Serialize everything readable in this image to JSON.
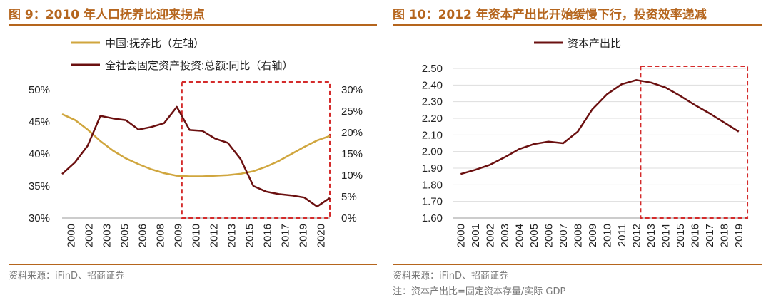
{
  "figures": [
    {
      "title": "图 9：2010 年人口抚养比迎来拐点",
      "source": "资料来源：iFinD、招商证券"
    },
    {
      "title": "图 10：2012 年资本产出比开始缓慢下行，投资效率递减",
      "source": "资料来源：iFinD、招商证券",
      "note": "注：资本产出比=固定资本存量/实际 GDP"
    }
  ],
  "chart_data": [
    {
      "type": "line",
      "title": "2010 年人口抚养比迎来拐点",
      "x_ticks": [
        "2000",
        "2002",
        "2003",
        "2005",
        "2006",
        "2008",
        "2009",
        "2010",
        "2012",
        "2013",
        "2015",
        "2016",
        "2017",
        "2019",
        "2020"
      ],
      "left_axis": {
        "range": [
          30,
          50
        ],
        "ticks": [
          "30%",
          "35%",
          "40%",
          "45%",
          "50%"
        ]
      },
      "right_axis": {
        "range": [
          0,
          30
        ],
        "ticks": [
          "0%",
          "5%",
          "10%",
          "15%",
          "20%",
          "25%",
          "30%"
        ]
      },
      "highlight_range": [
        2009.4,
        2021.0
      ],
      "series": [
        {
          "name": "中国:抚养比（左轴）",
          "axis": "left",
          "color": "#d0a63e",
          "x": [
            2000,
            2001,
            2002,
            2003,
            2004,
            2005,
            2006,
            2007,
            2008,
            2009,
            2010,
            2011,
            2012,
            2013,
            2014,
            2015,
            2016,
            2017,
            2018,
            2019,
            2020,
            2021
          ],
          "values": [
            46.2,
            45.3,
            43.8,
            42.0,
            40.5,
            39.3,
            38.4,
            37.6,
            37.0,
            36.6,
            36.5,
            36.5,
            36.6,
            36.7,
            36.9,
            37.3,
            38.0,
            38.9,
            40.0,
            41.1,
            42.1,
            42.8
          ]
        },
        {
          "name": "全社会固定资产投资:总额:同比（右轴）",
          "axis": "right",
          "color": "#6b1010",
          "x": [
            2000,
            2001,
            2002,
            2003,
            2004,
            2005,
            2006,
            2007,
            2008,
            2009,
            2010,
            2011,
            2012,
            2013,
            2014,
            2015,
            2016,
            2017,
            2018,
            2019,
            2020,
            2021
          ],
          "values": [
            10.3,
            13.0,
            16.9,
            23.9,
            23.3,
            22.9,
            20.7,
            21.3,
            22.2,
            26.0,
            20.6,
            20.4,
            18.6,
            17.6,
            13.8,
            7.5,
            6.2,
            5.6,
            5.3,
            4.8,
            2.7,
            4.7
          ]
        }
      ]
    },
    {
      "type": "line",
      "title": "2012 年资本产出比开始缓慢下行，投资效率递减",
      "x_ticks": [
        "2000",
        "2001",
        "2002",
        "2003",
        "2004",
        "2005",
        "2006",
        "2007",
        "2008",
        "2009",
        "2010",
        "2011",
        "2012",
        "2013",
        "2014",
        "2015",
        "2016",
        "2017",
        "2018",
        "2019"
      ],
      "y_axis": {
        "range": [
          1.6,
          2.5
        ],
        "ticks": [
          "1.60",
          "1.70",
          "1.80",
          "1.90",
          "2.00",
          "2.10",
          "2.20",
          "2.30",
          "2.40",
          "2.50"
        ]
      },
      "highlight_range": [
        2012.3,
        2019.6
      ],
      "series": [
        {
          "name": "资本产出比",
          "color": "#6b1010",
          "x": [
            2000,
            2001,
            2002,
            2003,
            2004,
            2005,
            2006,
            2007,
            2008,
            2009,
            2010,
            2011,
            2012,
            2013,
            2014,
            2015,
            2016,
            2017,
            2018,
            2019
          ],
          "values": [
            1.865,
            1.89,
            1.92,
            1.965,
            2.015,
            2.045,
            2.06,
            2.05,
            2.12,
            2.255,
            2.345,
            2.405,
            2.43,
            2.415,
            2.385,
            2.335,
            2.28,
            2.23,
            2.175,
            2.12
          ]
        }
      ]
    }
  ]
}
